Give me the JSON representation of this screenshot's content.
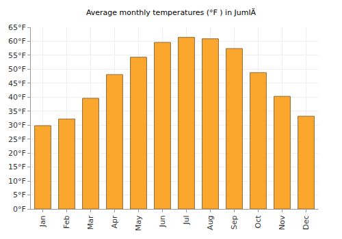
{
  "chart_data": {
    "type": "bar",
    "title": "Average monthly temperatures (°F ) in JumlÄ",
    "categories": [
      "Jan",
      "Feb",
      "Mar",
      "Apr",
      "May",
      "Jun",
      "Jul",
      "Aug",
      "Sep",
      "Oct",
      "Nov",
      "Dec"
    ],
    "values": [
      29.8,
      32.2,
      39.6,
      48.1,
      54.3,
      59.6,
      61.4,
      60.9,
      57.4,
      48.8,
      40.3,
      33.2
    ],
    "color": "#fba72e",
    "ylim": [
      0,
      65
    ],
    "yticks": [
      {
        "value": 0,
        "label": "0°F"
      },
      {
        "value": 5,
        "label": "5°F"
      },
      {
        "value": 10,
        "label": "10°F"
      },
      {
        "value": 15,
        "label": "15°F"
      },
      {
        "value": 20,
        "label": "20°F"
      },
      {
        "value": 25,
        "label": "25°F"
      },
      {
        "value": 30,
        "label": "30°F"
      },
      {
        "value": 35,
        "label": "35°F"
      },
      {
        "value": 40,
        "label": "40°F"
      },
      {
        "value": 45,
        "label": "45°F"
      },
      {
        "value": 50,
        "label": "50°F"
      },
      {
        "value": 55,
        "label": "55°F"
      },
      {
        "value": 60,
        "label": "60°F"
      },
      {
        "value": 65,
        "label": "65°F"
      }
    ],
    "grid": true
  }
}
